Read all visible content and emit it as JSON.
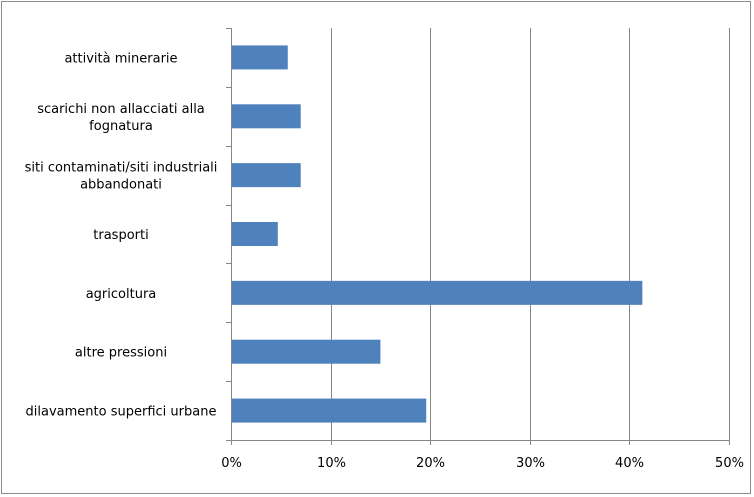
{
  "chart_data": {
    "type": "bar",
    "orientation": "horizontal",
    "title": "",
    "xlabel": "",
    "ylabel": "",
    "categories": [
      [
        "attività minerarie"
      ],
      [
        "scarichi non allacciati alla",
        "fognatura"
      ],
      [
        "siti contaminati/siti industriali",
        "abbandonati"
      ],
      [
        "trasporti"
      ],
      [
        "agricoltura"
      ],
      [
        "altre pressioni"
      ],
      [
        "dilavamento superfici urbane"
      ]
    ],
    "values": [
      5.7,
      7.0,
      7.0,
      4.7,
      41.3,
      15.0,
      19.6
    ],
    "xlim": [
      0,
      50
    ],
    "x_ticks": [
      "0%",
      "10%",
      "20%",
      "30%",
      "40%",
      "50%"
    ],
    "grid": "vertical",
    "legend": "none",
    "colors": {
      "bar": "#4f81bd",
      "grid": "#878787",
      "axis": "#878787"
    }
  }
}
